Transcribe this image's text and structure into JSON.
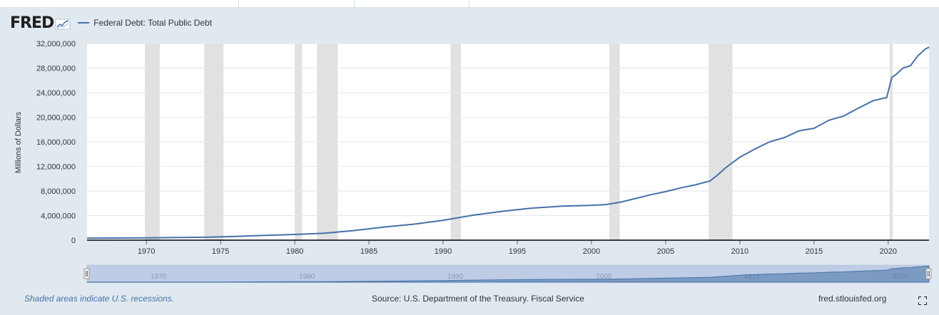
{
  "header": {
    "logo_text": "FRED",
    "series_label": "Federal Debt: Total Public Debt"
  },
  "icons": {
    "logo_graph": "line-graph-icon",
    "fullscreen": "fullscreen-icon"
  },
  "colors": {
    "series": "#4572a7",
    "recession": "#e1e1e1",
    "background": "#e1e9f0",
    "navigator_fill": "#9fb3d7"
  },
  "footer": {
    "note": "Shaded areas indicate U.S. recessions.",
    "source": "Source: U.S. Department of the Treasury. Fiscal Service",
    "site": "fred.stlouisfed.org"
  },
  "chart_data": {
    "type": "line",
    "title": "",
    "xlabel": "",
    "ylabel": "Millions of Dollars",
    "xlim": [
      1966.0,
      2022.75
    ],
    "ylim": [
      0,
      32000000
    ],
    "x_ticks": [
      1970,
      1975,
      1980,
      1985,
      1990,
      1995,
      2000,
      2005,
      2010,
      2015,
      2020
    ],
    "x_tick_labels": [
      "1970",
      "1975",
      "1980",
      "1985",
      "1990",
      "1995",
      "2000",
      "2005",
      "2010",
      "2015",
      "2020"
    ],
    "y_ticks": [
      0,
      4000000,
      8000000,
      12000000,
      16000000,
      20000000,
      24000000,
      28000000,
      32000000
    ],
    "y_tick_labels": [
      "0",
      "4,000,000",
      "8,000,000",
      "12,000,000",
      "16,000,000",
      "20,000,000",
      "24,000,000",
      "28,000,000",
      "32,000,000"
    ],
    "grid": true,
    "legend": "top-left",
    "recessions": [
      [
        1969.9,
        1970.9
      ],
      [
        1973.9,
        1975.2
      ],
      [
        1980.0,
        1980.5
      ],
      [
        1981.5,
        1982.9
      ],
      [
        1990.5,
        1991.2
      ],
      [
        2001.2,
        2001.9
      ],
      [
        2007.9,
        2009.5
      ],
      [
        2020.1,
        2020.3
      ]
    ],
    "navigator_labels": [
      "1970",
      "1980",
      "1990",
      "2000",
      "2010",
      "2020"
    ],
    "series": [
      {
        "name": "Federal Debt: Total Public Debt",
        "x": [
          1966.0,
          1968.0,
          1970.0,
          1972.0,
          1974.0,
          1976.0,
          1978.0,
          1980.0,
          1982.0,
          1984.0,
          1986.0,
          1988.0,
          1990.0,
          1992.0,
          1994.0,
          1996.0,
          1998.0,
          2000.0,
          2001.0,
          2002.0,
          2004.0,
          2005.0,
          2006.0,
          2007.0,
          2008.0,
          2008.5,
          2009.0,
          2010.0,
          2011.0,
          2012.0,
          2013.0,
          2014.0,
          2015.0,
          2016.0,
          2017.0,
          2018.0,
          2019.0,
          2019.9,
          2020.25,
          2020.5,
          2021.0,
          2021.5,
          2022.0,
          2022.5,
          2022.75
        ],
        "y": [
          320000,
          350000,
          380000,
          430000,
          480000,
          620000,
          780000,
          930000,
          1140000,
          1570000,
          2130000,
          2600000,
          3230000,
          4060000,
          4690000,
          5220000,
          5530000,
          5670000,
          5800000,
          6200000,
          7400000,
          7900000,
          8500000,
          9000000,
          9650000,
          10600000,
          11700000,
          13500000,
          14800000,
          16000000,
          16700000,
          17800000,
          18200000,
          19500000,
          20200000,
          21500000,
          22700000,
          23200000,
          26500000,
          26900000,
          28000000,
          28400000,
          30000000,
          31100000,
          31400000
        ]
      }
    ]
  }
}
